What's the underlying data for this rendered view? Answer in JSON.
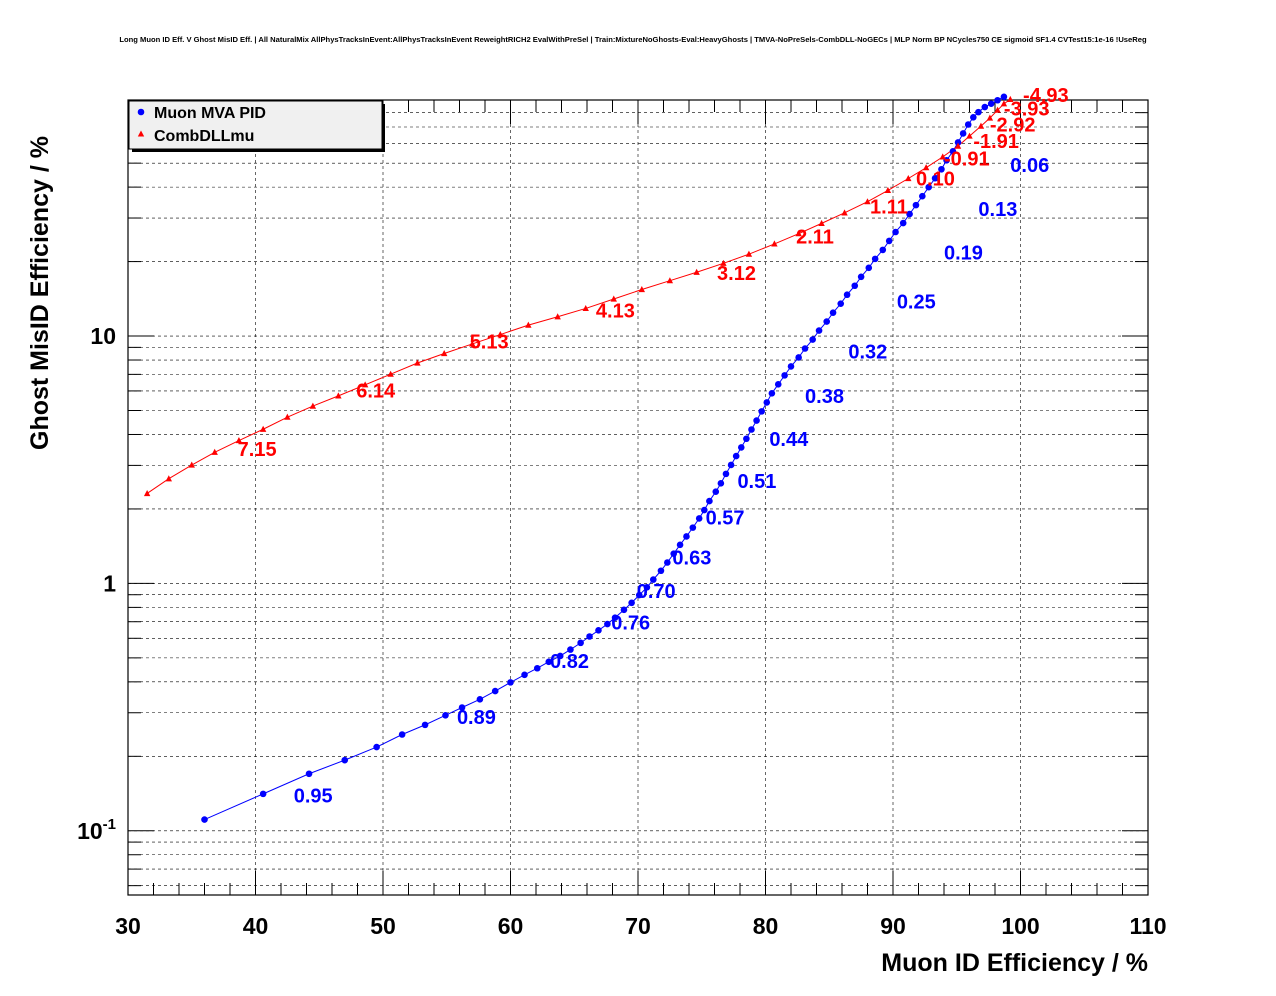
{
  "chart_data": {
    "type": "scatter",
    "title": "Long Muon ID Eff. V Ghost MisID Eff. | All NaturalMix AllPhysTracksInEvent:AllPhysTracksInEvent ReweightRICH2 EvalWithPreSel | Train:MixtureNoGhosts-Eval:HeavyGhosts | TMVA-NoPreSels-CombDLL-NoGECs | MLP Norm BP NCycles750 CE sigmoid SF1.4 CVTest15:1e-16 !UseReg",
    "xlabel": "Muon ID Efficiency / %",
    "ylabel": "Ghost MisID Efficiency / %",
    "xlim": [
      30,
      110
    ],
    "ylim": [
      0.055,
      90
    ],
    "yscale": "log",
    "grid": true,
    "legend_position": "top-left",
    "x_ticks": [
      {
        "value": 30,
        "label": "30"
      },
      {
        "value": 40,
        "label": "40"
      },
      {
        "value": 50,
        "label": "50"
      },
      {
        "value": 60,
        "label": "60"
      },
      {
        "value": 70,
        "label": "70"
      },
      {
        "value": 80,
        "label": "80"
      },
      {
        "value": 90,
        "label": "90"
      },
      {
        "value": 100,
        "label": "100"
      },
      {
        "value": 110,
        "label": "110"
      }
    ],
    "y_ticks": [
      {
        "value": 0.1,
        "mantissa": "10",
        "exponent": "-1"
      },
      {
        "value": 1,
        "mantissa": "1",
        "exponent": ""
      },
      {
        "value": 10,
        "mantissa": "10",
        "exponent": ""
      }
    ],
    "series": [
      {
        "name": "Muon MVA PID",
        "color": "#0000ff",
        "marker": "circle",
        "x": [
          36.0,
          40.6,
          44.2,
          47.0,
          49.5,
          51.5,
          53.3,
          54.9,
          56.2,
          57.6,
          58.8,
          60.0,
          61.1,
          62.1,
          63.0,
          63.9,
          64.7,
          65.5,
          66.2,
          66.9,
          67.6,
          68.2,
          68.9,
          69.5,
          70.1,
          70.7,
          71.2,
          71.8,
          72.3,
          72.8,
          73.3,
          73.8,
          74.3,
          74.8,
          75.2,
          75.6,
          76.1,
          76.5,
          76.9,
          77.3,
          77.7,
          78.1,
          78.5,
          78.9,
          79.3,
          79.7,
          80.1,
          80.5,
          81.0,
          81.5,
          82.0,
          82.6,
          83.1,
          83.7,
          84.2,
          84.8,
          85.3,
          85.9,
          86.4,
          87.0,
          87.5,
          88.1,
          88.6,
          89.2,
          89.7,
          90.2,
          90.8,
          91.3,
          91.8,
          92.3,
          92.8,
          93.3,
          93.8,
          94.2,
          94.7,
          95.1,
          95.5,
          95.9,
          96.3,
          96.7,
          97.2,
          97.7,
          98.2,
          98.7
        ],
        "y": [
          0.111,
          0.141,
          0.17,
          0.193,
          0.218,
          0.245,
          0.268,
          0.293,
          0.315,
          0.34,
          0.367,
          0.398,
          0.427,
          0.454,
          0.482,
          0.509,
          0.54,
          0.575,
          0.61,
          0.646,
          0.685,
          0.727,
          0.782,
          0.835,
          0.897,
          0.964,
          1.036,
          1.125,
          1.215,
          1.319,
          1.432,
          1.548,
          1.681,
          1.831,
          1.98,
          2.152,
          2.348,
          2.538,
          2.772,
          3.012,
          3.271,
          3.546,
          3.844,
          4.19,
          4.554,
          4.96,
          5.392,
          5.869,
          6.379,
          6.935,
          7.537,
          8.193,
          8.905,
          9.681,
          10.52,
          11.44,
          12.43,
          13.52,
          14.69,
          15.97,
          17.36,
          18.87,
          20.51,
          22.3,
          24.24,
          26.34,
          28.63,
          31.12,
          33.83,
          36.77,
          39.97,
          43.45,
          47.23,
          51.34,
          55.8,
          60.65,
          65.92,
          71.65,
          76.61,
          80.4,
          84.3,
          86.99,
          89.8,
          92.68
        ]
      },
      {
        "name": "CombDLLmu",
        "color": "#ff0000",
        "marker": "triangle",
        "x": [
          31.5,
          33.2,
          35.0,
          36.8,
          38.7,
          40.6,
          42.5,
          44.5,
          46.5,
          48.6,
          50.6,
          52.7,
          54.8,
          57.0,
          59.2,
          61.4,
          63.7,
          65.9,
          68.1,
          70.3,
          72.5,
          74.6,
          76.7,
          78.7,
          80.7,
          82.6,
          84.4,
          86.2,
          88.0,
          89.6,
          91.2,
          92.6,
          93.9,
          95.1,
          96.0,
          96.9,
          97.6,
          98.2,
          98.7,
          99.2
        ],
        "y": [
          2.31,
          2.65,
          3.01,
          3.39,
          3.78,
          4.2,
          4.7,
          5.21,
          5.73,
          6.35,
          7.01,
          7.78,
          8.5,
          9.29,
          10.14,
          11.07,
          11.97,
          12.93,
          14.12,
          15.42,
          16.74,
          18.11,
          19.68,
          21.43,
          23.57,
          25.93,
          28.54,
          31.48,
          34.92,
          38.79,
          43.34,
          47.94,
          53.01,
          58.6,
          64.33,
          70.59,
          76.12,
          81.86,
          86.93,
          90.48
        ]
      }
    ],
    "annotations": [
      {
        "series": "Muon MVA PID",
        "text": "0.95",
        "x": 43.0,
        "y": 0.13
      },
      {
        "series": "Muon MVA PID",
        "text": "0.89",
        "x": 55.8,
        "y": 0.27
      },
      {
        "series": "Muon MVA PID",
        "text": "0.82",
        "x": 63.1,
        "y": 0.455
      },
      {
        "series": "Muon MVA PID",
        "text": "0.76",
        "x": 67.9,
        "y": 0.65
      },
      {
        "series": "Muon MVA PID",
        "text": "0.70",
        "x": 69.9,
        "y": 0.875
      },
      {
        "series": "Muon MVA PID",
        "text": "0.63",
        "x": 72.7,
        "y": 1.195
      },
      {
        "series": "Muon MVA PID",
        "text": "0.57",
        "x": 75.3,
        "y": 1.73
      },
      {
        "series": "Muon MVA PID",
        "text": "0.51",
        "x": 77.8,
        "y": 2.43
      },
      {
        "series": "Muon MVA PID",
        "text": "0.44",
        "x": 80.3,
        "y": 3.6
      },
      {
        "series": "Muon MVA PID",
        "text": "0.38",
        "x": 83.1,
        "y": 5.35
      },
      {
        "series": "Muon MVA PID",
        "text": "0.32",
        "x": 86.5,
        "y": 8.1
      },
      {
        "series": "Muon MVA PID",
        "text": "0.25",
        "x": 90.3,
        "y": 12.9
      },
      {
        "series": "Muon MVA PID",
        "text": "0.19",
        "x": 94.0,
        "y": 20.4
      },
      {
        "series": "Muon MVA PID",
        "text": "0.13",
        "x": 96.7,
        "y": 30.6
      },
      {
        "series": "Muon MVA PID",
        "text": "0.06",
        "x": 99.2,
        "y": 46.0
      },
      {
        "series": "CombDLLmu",
        "text": "7.15",
        "x": 38.6,
        "y": 3.28
      },
      {
        "series": "CombDLLmu",
        "text": "6.14",
        "x": 47.9,
        "y": 5.65
      },
      {
        "series": "CombDLLmu",
        "text": "5.13",
        "x": 56.8,
        "y": 8.9
      },
      {
        "series": "CombDLLmu",
        "text": "4.13",
        "x": 66.7,
        "y": 11.9
      },
      {
        "series": "CombDLLmu",
        "text": "3.12",
        "x": 76.2,
        "y": 16.85
      },
      {
        "series": "CombDLLmu",
        "text": "2.11",
        "x": 82.4,
        "y": 23.7
      },
      {
        "series": "CombDLLmu",
        "text": "1.11",
        "x": 88.2,
        "y": 31.3
      },
      {
        "series": "CombDLLmu",
        "text": "0.10",
        "x": 91.8,
        "y": 40.6
      },
      {
        "series": "CombDLLmu",
        "text": "-0.91",
        "x": 94.0,
        "y": 49.0
      },
      {
        "series": "CombDLLmu",
        "text": "-1.91",
        "x": 96.3,
        "y": 57.5
      },
      {
        "series": "CombDLLmu",
        "text": "-2.92",
        "x": 97.6,
        "y": 67.2
      },
      {
        "series": "CombDLLmu",
        "text": "-3.93",
        "x": 98.7,
        "y": 78.0
      },
      {
        "series": "CombDLLmu",
        "text": "-4.93",
        "x": 100.2,
        "y": 88.5
      }
    ]
  }
}
